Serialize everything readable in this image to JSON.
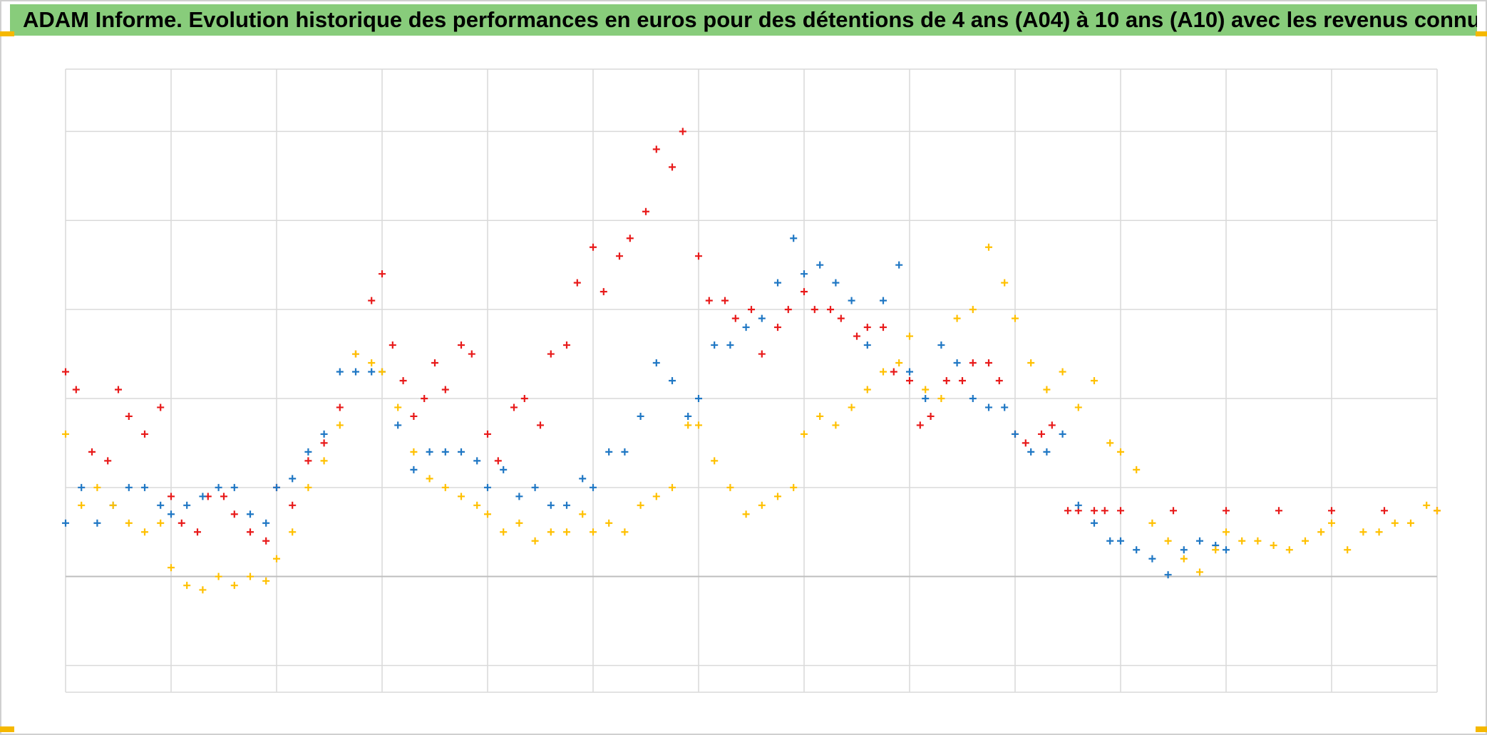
{
  "header": {
    "title": "ADAM Informe. Evolution historique des performances en euros pour des détentions de 4 ans (A04) à 10 ans (A10) avec les revenus connus distribués",
    "background_color": "#88cc7b",
    "accent_color": "#f5b800"
  },
  "chart_data": {
    "type": "scatter",
    "title": "ADAM Informe. Evolution historique des performances en euros pour des détentions de 4 ans (A04) à 10 ans (A10) avec les revenus connus distribués",
    "xlabel": "",
    "ylabel": "",
    "xlim": [
      0,
      13
    ],
    "ylim": [
      -1.3,
      5.7
    ],
    "grid": true,
    "legend": "none",
    "tick_labels_visible": false,
    "zero_line": 0,
    "marker": "plus",
    "series": [
      {
        "color": "#e81a1a",
        "x": [
          0.0,
          0.1,
          0.25,
          0.4,
          0.5,
          0.6,
          0.75,
          0.9,
          1.0,
          1.1,
          1.25,
          1.35,
          1.5,
          1.6,
          1.75,
          1.9,
          2.0,
          2.15,
          2.3,
          2.45,
          2.6,
          2.75,
          2.9,
          3.0,
          3.1,
          3.2,
          3.3,
          3.4,
          3.5,
          3.6,
          3.75,
          3.85,
          4.0,
          4.1,
          4.25,
          4.35,
          4.5,
          4.6,
          4.75,
          4.85,
          5.0,
          5.1,
          5.25,
          5.35,
          5.5,
          5.6,
          5.75,
          5.85,
          6.0,
          6.1,
          6.25,
          6.35,
          6.5,
          6.6,
          6.75,
          6.85,
          7.0,
          7.1,
          7.25,
          7.35,
          7.5,
          7.6,
          7.75,
          7.85,
          8.0,
          8.1,
          8.2,
          8.35,
          8.5,
          8.6,
          8.75,
          8.85,
          9.0,
          9.1,
          9.25,
          9.35,
          9.5,
          9.6,
          9.75,
          9.85,
          10.0,
          10.5,
          11.0,
          11.5,
          12.0,
          12.5,
          13.0
        ],
        "y": [
          2.3,
          2.1,
          1.4,
          1.3,
          2.1,
          1.8,
          1.6,
          1.9,
          0.9,
          0.6,
          0.5,
          0.9,
          0.9,
          0.7,
          0.5,
          0.4,
          1.0,
          0.8,
          1.3,
          1.5,
          1.9,
          2.5,
          3.1,
          3.4,
          2.6,
          2.2,
          1.8,
          2.0,
          2.4,
          2.1,
          2.6,
          2.5,
          1.6,
          1.3,
          1.9,
          2.0,
          1.7,
          2.5,
          2.6,
          3.3,
          3.7,
          3.2,
          3.6,
          3.8,
          4.1,
          4.8,
          4.6,
          5.0,
          3.6,
          3.1,
          3.1,
          2.9,
          3.0,
          2.5,
          2.8,
          3.0,
          3.2,
          3.0,
          3.0,
          2.9,
          2.7,
          2.8,
          2.8,
          2.3,
          2.2,
          1.7,
          1.8,
          2.2,
          2.2,
          2.4,
          2.4,
          2.2,
          1.6,
          1.5,
          1.6,
          1.7,
          0.74,
          0.74,
          0.74,
          0.74,
          0.74,
          0.74,
          0.74,
          0.74,
          0.74,
          0.74,
          0.74
        ]
      },
      {
        "color": "#1f77c4",
        "x": [
          0.0,
          0.15,
          0.3,
          0.45,
          0.6,
          0.75,
          0.9,
          1.0,
          1.15,
          1.3,
          1.45,
          1.6,
          1.75,
          1.9,
          2.0,
          2.15,
          2.3,
          2.45,
          2.6,
          2.75,
          2.9,
          3.0,
          3.15,
          3.3,
          3.45,
          3.6,
          3.75,
          3.9,
          4.0,
          4.15,
          4.3,
          4.45,
          4.6,
          4.75,
          4.9,
          5.0,
          5.15,
          5.3,
          5.45,
          5.6,
          5.75,
          5.9,
          6.0,
          6.15,
          6.3,
          6.45,
          6.6,
          6.75,
          6.9,
          7.0,
          7.15,
          7.3,
          7.45,
          7.6,
          7.75,
          7.9,
          8.0,
          8.15,
          8.3,
          8.45,
          8.6,
          8.75,
          8.9,
          9.0,
          9.15,
          9.3,
          9.45,
          9.6,
          9.75,
          9.9,
          10.0,
          10.15,
          10.3,
          10.45,
          10.6,
          10.75,
          10.9,
          11.0
        ],
        "y": [
          0.6,
          1.0,
          0.6,
          0.8,
          1.0,
          1.0,
          0.8,
          0.7,
          0.8,
          0.9,
          1.0,
          1.0,
          0.7,
          0.6,
          1.0,
          1.1,
          1.4,
          1.6,
          2.3,
          2.3,
          2.3,
          2.3,
          1.7,
          1.2,
          1.4,
          1.4,
          1.4,
          1.3,
          1.0,
          1.2,
          0.9,
          1.0,
          0.8,
          0.8,
          1.1,
          1.0,
          1.4,
          1.4,
          1.8,
          2.4,
          2.2,
          1.8,
          2.0,
          2.6,
          2.6,
          2.8,
          2.9,
          3.3,
          3.8,
          3.4,
          3.5,
          3.3,
          3.1,
          2.6,
          3.1,
          3.5,
          2.3,
          2.0,
          2.6,
          2.4,
          2.0,
          1.9,
          1.9,
          1.6,
          1.4,
          1.4,
          1.6,
          0.8,
          0.6,
          0.4,
          0.4,
          0.3,
          0.2,
          0.02,
          0.3,
          0.4,
          0.35,
          0.3
        ]
      },
      {
        "color": "#ffc000",
        "x": [
          0.0,
          0.15,
          0.3,
          0.45,
          0.6,
          0.75,
          0.9,
          1.0,
          1.15,
          1.3,
          1.45,
          1.6,
          1.75,
          1.9,
          2.0,
          2.15,
          2.3,
          2.45,
          2.6,
          2.75,
          2.9,
          3.0,
          3.15,
          3.3,
          3.45,
          3.6,
          3.75,
          3.9,
          4.0,
          4.15,
          4.3,
          4.45,
          4.6,
          4.75,
          4.9,
          5.0,
          5.15,
          5.3,
          5.45,
          5.6,
          5.75,
          5.9,
          6.0,
          6.15,
          6.3,
          6.45,
          6.6,
          6.75,
          6.9,
          7.0,
          7.15,
          7.3,
          7.45,
          7.6,
          7.75,
          7.9,
          8.0,
          8.15,
          8.3,
          8.45,
          8.6,
          8.75,
          8.9,
          9.0,
          9.15,
          9.3,
          9.45,
          9.6,
          9.75,
          9.9,
          10.0,
          10.15,
          10.3,
          10.45,
          10.6,
          10.75,
          10.9,
          11.0,
          11.15,
          11.3,
          11.45,
          11.6,
          11.75,
          11.9,
          12.0,
          12.15,
          12.3,
          12.45,
          12.6,
          12.75,
          12.9,
          13.0
        ],
        "y": [
          1.6,
          0.8,
          1.0,
          0.8,
          0.6,
          0.5,
          0.6,
          0.1,
          -0.1,
          -0.15,
          0.0,
          -0.1,
          0.0,
          -0.05,
          0.2,
          0.5,
          1.0,
          1.3,
          1.7,
          2.5,
          2.4,
          2.3,
          1.9,
          1.4,
          1.1,
          1.0,
          0.9,
          0.8,
          0.7,
          0.5,
          0.6,
          0.4,
          0.5,
          0.5,
          0.7,
          0.5,
          0.6,
          0.5,
          0.8,
          0.9,
          1.0,
          1.7,
          1.7,
          1.3,
          1.0,
          0.7,
          0.8,
          0.9,
          1.0,
          1.6,
          1.8,
          1.7,
          1.9,
          2.1,
          2.3,
          2.4,
          2.7,
          2.1,
          2.0,
          2.9,
          3.0,
          3.7,
          3.3,
          2.9,
          2.4,
          2.1,
          2.3,
          1.9,
          2.2,
          1.5,
          1.4,
          1.2,
          0.6,
          0.4,
          0.2,
          0.05,
          0.3,
          0.5,
          0.4,
          0.4,
          0.35,
          0.3,
          0.4,
          0.5,
          0.6,
          0.3,
          0.5,
          0.5,
          0.6,
          0.6,
          0.8,
          0.74
        ]
      }
    ]
  }
}
